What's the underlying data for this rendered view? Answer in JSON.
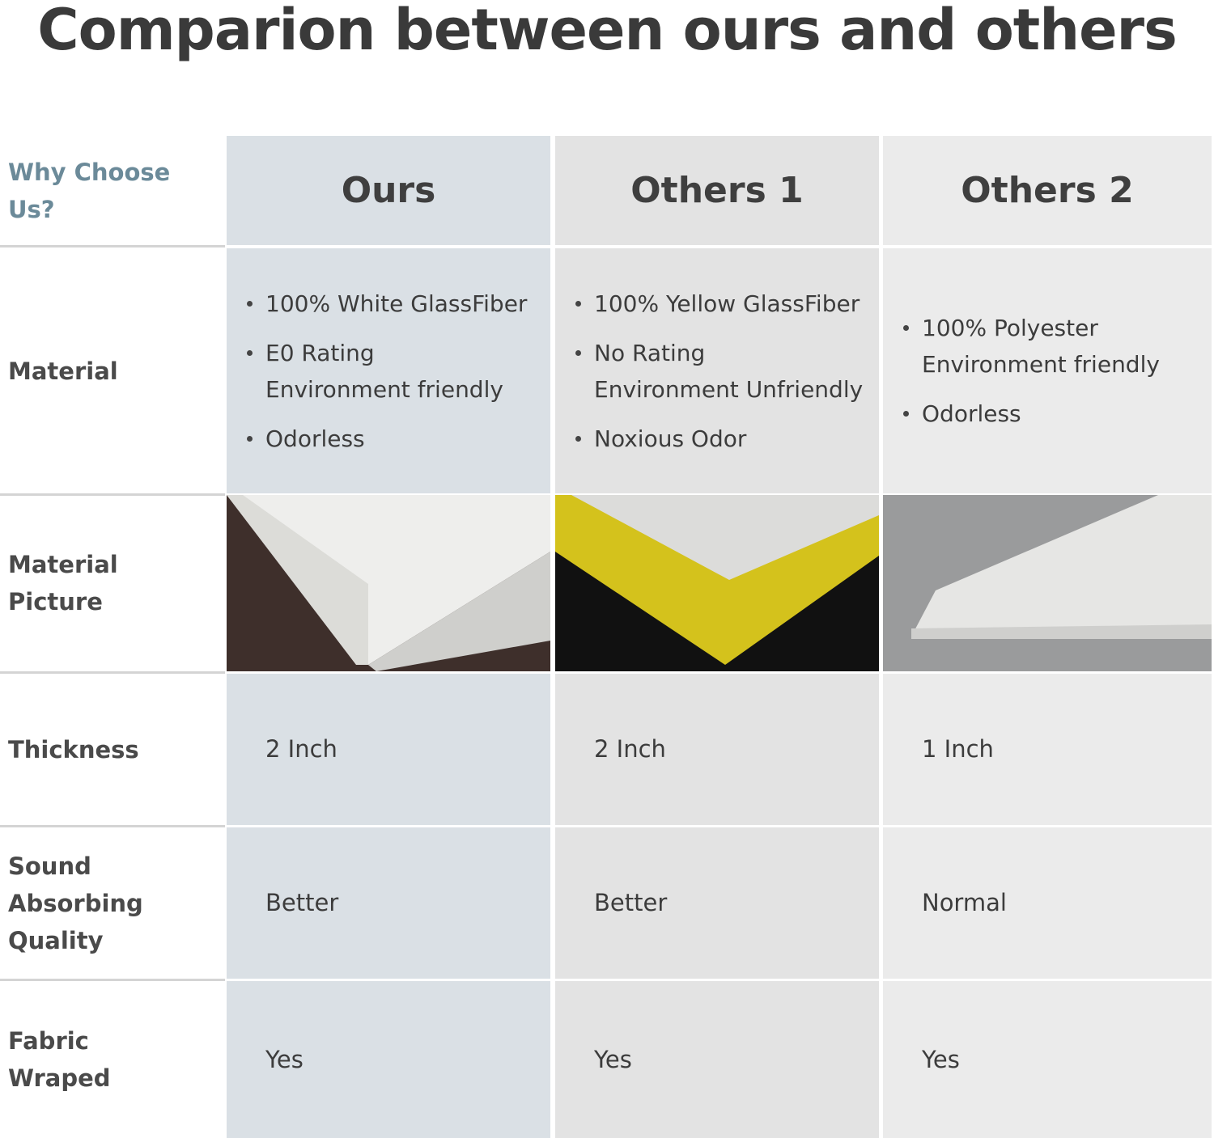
{
  "title": "Comparion between ours and others",
  "table": {
    "header": [
      "Why Choose Us?",
      "Ours",
      "Others 1",
      "Others 2"
    ],
    "rows": [
      {
        "label": [
          "Material"
        ],
        "cells": [
          [
            [
              "100% White GlassFiber"
            ],
            [
              "E0 Rating",
              "Environment friendly"
            ],
            [
              "Odorless"
            ]
          ],
          [
            [
              "100% Yellow GlassFiber"
            ],
            [
              "No Rating",
              "Environment Unfriendly"
            ],
            [
              "Noxious Odor"
            ]
          ],
          [
            [
              "100% Polyester",
              "Environment friendly"
            ],
            [
              "Odorless"
            ]
          ]
        ]
      },
      {
        "label": [
          "Material",
          "Picture"
        ]
      },
      {
        "label": [
          "Thickness"
        ],
        "cells": [
          "2 Inch",
          "2 Inch",
          "1 Inch"
        ]
      },
      {
        "label": [
          "Sound Absorbing",
          "Quality"
        ],
        "cells": [
          "Better",
          "Better",
          "Normal"
        ]
      },
      {
        "label": [
          "Fabric",
          "Wraped"
        ],
        "cells": [
          "Yes",
          "Yes",
          "Yes"
        ]
      }
    ]
  }
}
